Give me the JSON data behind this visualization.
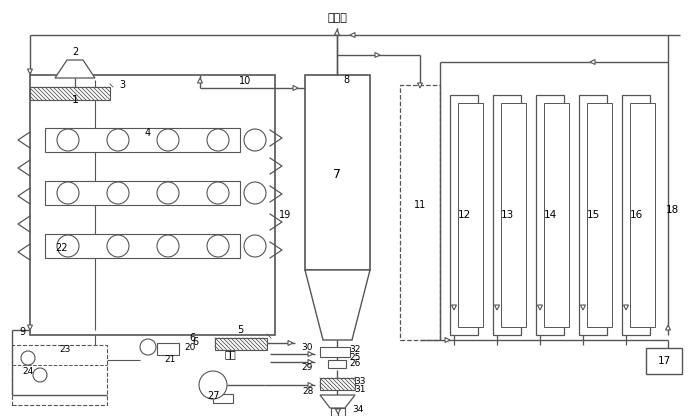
{
  "bg_color": "#ffffff",
  "line_color": "#555555",
  "fig_width": 6.96,
  "fig_height": 4.16,
  "dpi": 100,
  "label_daoyonghu": "到用户",
  "label_zhengqi": "蒸汽"
}
